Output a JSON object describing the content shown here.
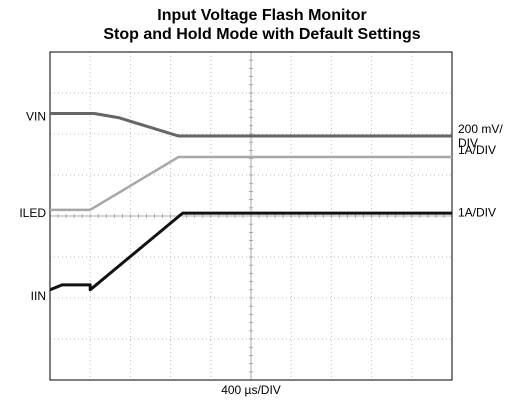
{
  "chart_data": {
    "type": "line",
    "title": [
      "Input Voltage Flash Monitor",
      "Stop and Hold Mode with Default Settings"
    ],
    "x_label": "400 µs/DIV",
    "xlim": [
      0,
      10
    ],
    "ylim": [
      0,
      8
    ],
    "xticks": [
      0,
      1,
      2,
      3,
      4,
      5,
      6,
      7,
      8,
      9,
      10
    ],
    "yticks": [
      0,
      1,
      2,
      3,
      4,
      5,
      6,
      7,
      8
    ],
    "grid": true,
    "series": [
      {
        "name": "VIN",
        "color": "#666666",
        "scale_label": [
          "200 mV/",
          "DIV"
        ],
        "x": [
          0,
          1.1,
          1.7,
          3.2,
          10
        ],
        "values": [
          6.5,
          6.5,
          6.4,
          5.95,
          5.95
        ]
      },
      {
        "name": "ILED",
        "color": "#a8a8a8",
        "scale_label": [
          "1A/DIV"
        ],
        "x": [
          0,
          1.0,
          3.2,
          10
        ],
        "values": [
          4.15,
          4.15,
          5.44,
          5.44
        ]
      },
      {
        "name": "IIN",
        "color": "#111111",
        "scale_label": [
          "1A/DIV"
        ],
        "x": [
          0,
          0.3,
          1.0,
          1.0,
          3.3,
          10
        ],
        "values": [
          2.2,
          2.32,
          2.32,
          2.2,
          4.07,
          4.07
        ]
      }
    ]
  }
}
